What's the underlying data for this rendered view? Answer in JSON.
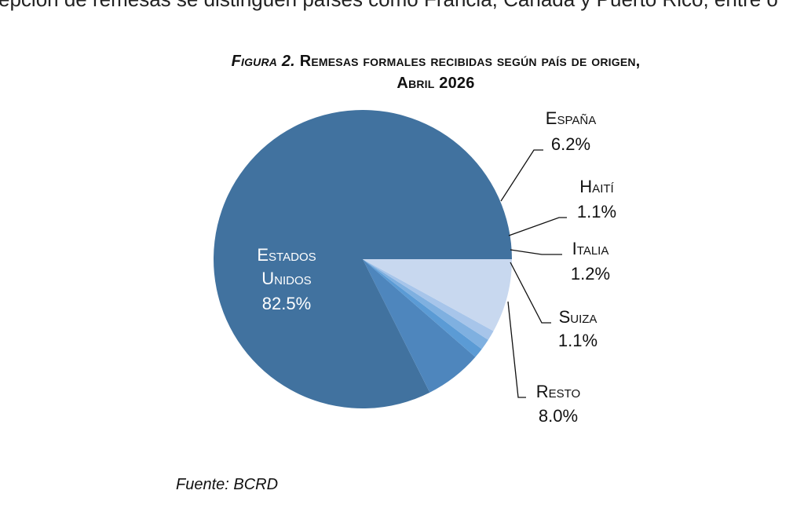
{
  "top_text": "epción de remesas se distinguen países como Francia, Canadá y Puerto Rico, entre o",
  "figure": {
    "prefix": "Figura 2.",
    "title_line1": "Remesas formales recibidas según país de origen,",
    "title_line2": "Abril 2026"
  },
  "chart_data": {
    "type": "pie",
    "title": "Remesas formales recibidas según país de origen, Abril 2026",
    "slices": [
      {
        "label": "Estados Unidos",
        "value": 82.5,
        "value_text": "82.5%",
        "color": "#41729f"
      },
      {
        "label": "España",
        "value": 6.2,
        "value_text": "6.2%",
        "color": "#4e86bd"
      },
      {
        "label": "Haití",
        "value": 1.1,
        "value_text": "1.1%",
        "color": "#5b9bd5"
      },
      {
        "label": "Italia",
        "value": 1.2,
        "value_text": "1.2%",
        "color": "#7fb0e0"
      },
      {
        "label": "Suiza",
        "value": 1.1,
        "value_text": "1.1%",
        "color": "#a7c5ea"
      },
      {
        "label": "Resto",
        "value": 8.0,
        "value_text": "8.0%",
        "color": "#c8d8ef"
      }
    ]
  },
  "source": "Fuente: BCRD"
}
